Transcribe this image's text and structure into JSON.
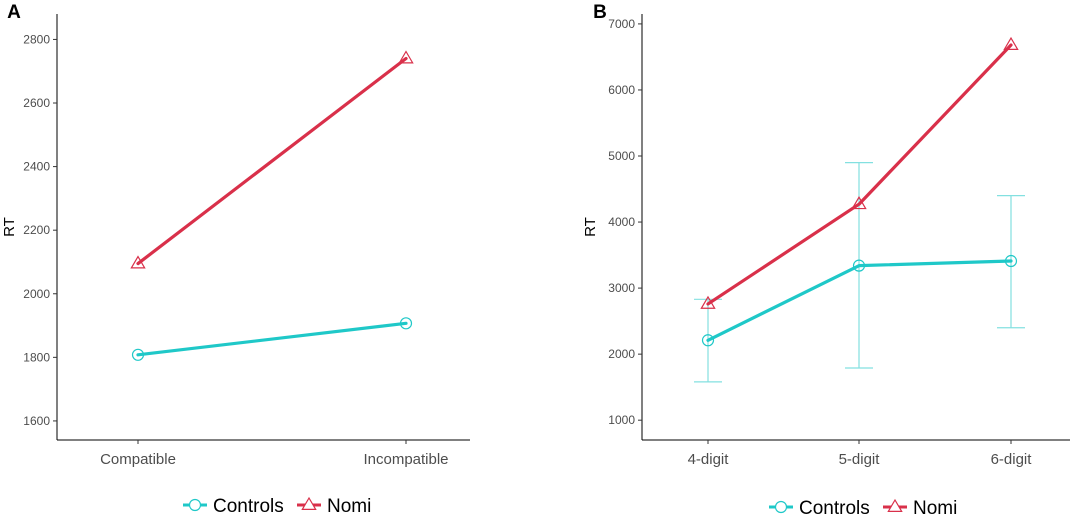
{
  "chart_data": [
    {
      "type": "line",
      "panel_label": "A",
      "ylabel": "RT",
      "xlabel": "",
      "categories": [
        "Compatible",
        "Incompatible"
      ],
      "y_ticks": [
        "1600",
        "1800",
        "2000",
        "2200",
        "2400",
        "2600",
        "2800"
      ],
      "ylim": [
        1540,
        2880
      ],
      "series": [
        {
          "name": "Controls",
          "values": [
            1808,
            1907
          ],
          "marker": "circle",
          "color": "#1fc8c8"
        },
        {
          "name": "Nomi",
          "values": [
            2095,
            2740
          ],
          "marker": "triangle",
          "color": "#d9304a"
        }
      ],
      "error_bars": []
    },
    {
      "type": "line",
      "panel_label": "B",
      "ylabel": "RT",
      "xlabel": "",
      "categories": [
        "4-digit",
        "5-digit",
        "6-digit"
      ],
      "y_ticks": [
        "1000",
        "2000",
        "3000",
        "4000",
        "5000",
        "6000",
        "7000"
      ],
      "ylim": [
        700,
        7150
      ],
      "series": [
        {
          "name": "Controls",
          "values": [
            2210,
            3340,
            3410
          ],
          "marker": "circle",
          "color": "#1fc8c8"
        },
        {
          "name": "Nomi",
          "values": [
            2760,
            4270,
            6680
          ],
          "marker": "triangle",
          "color": "#d9304a"
        }
      ],
      "error_bars": [
        {
          "series": "Controls",
          "category": "4-digit",
          "low": 1580,
          "high": 2830
        },
        {
          "series": "Controls",
          "category": "5-digit",
          "low": 1790,
          "high": 4900
        },
        {
          "series": "Controls",
          "category": "6-digit",
          "low": 2400,
          "high": 4400
        }
      ]
    }
  ],
  "legend": {
    "items": [
      {
        "label": "Controls",
        "color": "#1fc8c8",
        "marker": "circle"
      },
      {
        "label": "Nomi",
        "color": "#d9304a",
        "marker": "triangle"
      }
    ]
  }
}
